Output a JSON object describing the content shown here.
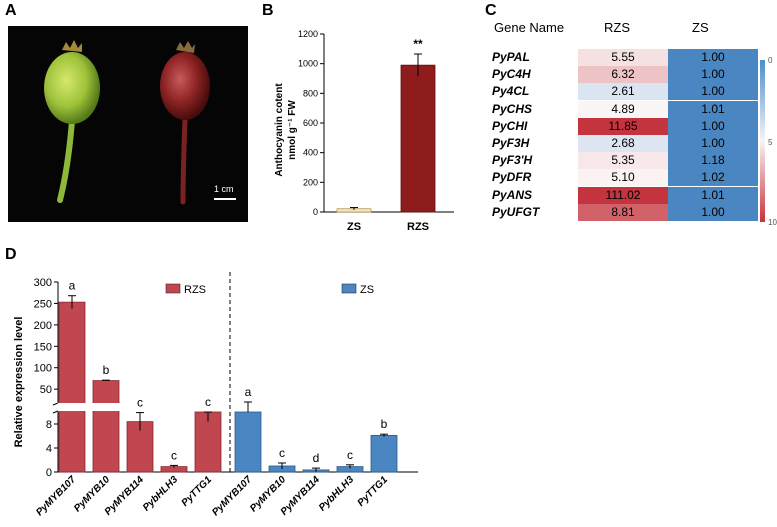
{
  "panels": {
    "a": "A",
    "b": "B",
    "c": "C",
    "d": "D"
  },
  "panel_a": {
    "scale_label": "1 cm"
  },
  "colors": {
    "rzs": "#c0464f",
    "zs": "#4a86c1",
    "zs_light": "#f4e6b8"
  },
  "chart_data": [
    {
      "type": "bar",
      "panel": "B",
      "categories": [
        "ZS",
        "RZS"
      ],
      "values": [
        22,
        990
      ],
      "errors": [
        8,
        75
      ],
      "significance": {
        "RZS": "**"
      },
      "ylabel_line1": "Anthocyanin cotent",
      "ylabel_line2": "nmol g⁻¹ FW",
      "yticks": [
        "0",
        "200",
        "400",
        "600",
        "800",
        "1000",
        "1200"
      ],
      "ylim": [
        0,
        1200
      ]
    },
    {
      "type": "heatmap",
      "panel": "C",
      "header": {
        "gene": "Gene Name",
        "col1": "RZS",
        "col2": "ZS"
      },
      "rows": [
        {
          "gene": "PyPAL",
          "rzs": "5.55",
          "zs": "1.00"
        },
        {
          "gene": "PyC4H",
          "rzs": "6.32",
          "zs": "1.00"
        },
        {
          "gene": "Py4CL",
          "rzs": "2.61",
          "zs": "1.00"
        },
        {
          "gene": "PyCHS",
          "rzs": "4.89",
          "zs": "1.01"
        },
        {
          "gene": "PyCHI",
          "rzs": "11.85",
          "zs": "1.00"
        },
        {
          "gene": "PyF3H",
          "rzs": "2.68",
          "zs": "1.00"
        },
        {
          "gene": "PyF3'H",
          "rzs": "5.35",
          "zs": "1.18"
        },
        {
          "gene": "PyDFR",
          "rzs": "5.10",
          "zs": "1.02"
        },
        {
          "gene": "PyANS",
          "rzs": "111.02",
          "zs": "1.01"
        },
        {
          "gene": "PyUFGT",
          "rzs": "8.81",
          "zs": "1.00"
        }
      ],
      "scale": {
        "min": "0",
        "mid": "5",
        "max": "10"
      }
    },
    {
      "type": "bar",
      "panel": "D",
      "ylabel": "Relative expression level",
      "legend": {
        "rzs": "RZS",
        "zs": "ZS"
      },
      "series": [
        {
          "name": "RZS",
          "categories": [
            "PyMYB107",
            "PyMYB10",
            "PyMYB114",
            "PybHLH3",
            "PyTTG1"
          ],
          "values": [
            253,
            70,
            8.4,
            0.9,
            10
          ],
          "errors": [
            15,
            1,
            1.5,
            0.2,
            1.6
          ],
          "letters": [
            "a",
            "b",
            "c",
            "c",
            "c"
          ]
        },
        {
          "name": "ZS",
          "categories": [
            "PyMYB107",
            "PyMYB10",
            "PyMYB114",
            "PybHLH3",
            "PyTTG1"
          ],
          "values": [
            19,
            1.0,
            0.35,
            0.9,
            6.1
          ],
          "errors": [
            1,
            0.5,
            0.3,
            0.3,
            0.2
          ],
          "letters": [
            "a",
            "c",
            "d",
            "c",
            "b"
          ]
        }
      ],
      "yticks_upper": [
        "50",
        "100",
        "150",
        "200",
        "250",
        "300"
      ],
      "yticks_lower": [
        "0",
        "4",
        "8"
      ],
      "axis_break": [
        10,
        20
      ]
    }
  ]
}
